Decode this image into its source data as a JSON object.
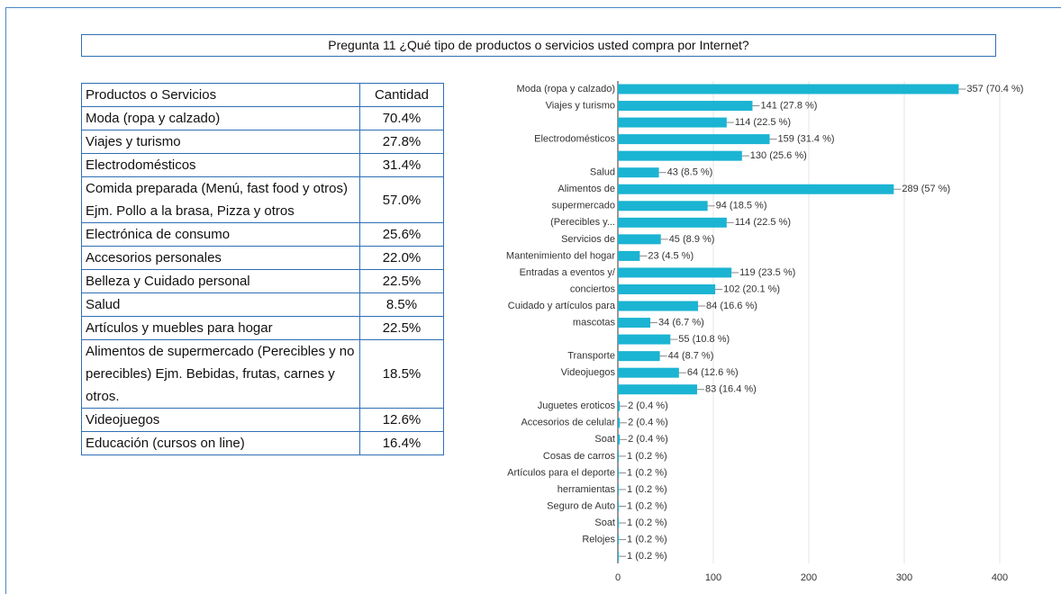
{
  "title": "Pregunta 11 ¿Qué tipo de productos o servicios usted compra por Internet?",
  "table": {
    "header": [
      "Productos o Servicios",
      "Cantidad"
    ],
    "rows": [
      [
        "Moda (ropa y calzado)",
        "70.4%"
      ],
      [
        "Viajes y turismo",
        "27.8%"
      ],
      [
        "Electrodomésticos",
        "31.4%"
      ],
      [
        "Comida preparada (Menú, fast food y otros) Ejm. Pollo a la brasa, Pizza y otros",
        "57.0%"
      ],
      [
        "Electrónica de consumo",
        "25.6%"
      ],
      [
        "Accesorios personales",
        "22.0%"
      ],
      [
        "Belleza y Cuidado personal",
        "22.5%"
      ],
      [
        "Salud",
        "8.5%"
      ],
      [
        "Artículos y muebles para hogar",
        "22.5%"
      ],
      [
        "Alimentos de supermercado (Perecibles y no perecibles) Ejm. Bebidas, frutas, carnes y otros.",
        "18.5%"
      ],
      [
        "Videojuegos",
        "12.6%"
      ],
      [
        "Educación (cursos on line)",
        "16.4%"
      ]
    ]
  },
  "chart_data": {
    "type": "bar",
    "orientation": "horizontal",
    "categories": [
      "Moda (ropa y calzado)",
      "Viajes y turismo",
      null,
      "Electrodomésticos",
      null,
      "Salud",
      "Alimentos de",
      "supermercado",
      "(Perecibles y...",
      "Servicios de",
      "Mantenimiento del hogar",
      "Entradas a eventos y/",
      "conciertos",
      "Cuidado y artículos para",
      "mascotas",
      null,
      "Transporte",
      "Videojuegos",
      null,
      "Juguetes eroticos",
      "Accesorios de celular",
      "Soat",
      "Cosas de carros",
      "Artículos para el deporte",
      "herramientas",
      "Seguro de Auto",
      "Soat",
      "Relojes",
      null
    ],
    "values": [
      357,
      141,
      114,
      159,
      130,
      43,
      289,
      94,
      114,
      45,
      23,
      119,
      102,
      84,
      34,
      55,
      44,
      64,
      83,
      2,
      2,
      2,
      1,
      1,
      1,
      1,
      1,
      1,
      1
    ],
    "value_labels": [
      "357 (70.4 %)",
      "141 (27.8 %)",
      "114 (22.5 %)",
      "159 (31.4 %)",
      "130 (25.6 %)",
      "43 (8.5 %)",
      "289 (57 %)",
      "94 (18.5 %)",
      "114 (22.5 %)",
      "45 (8.9 %)",
      "23 (4.5 %)",
      "119 (23.5 %)",
      "102 (20.1 %)",
      "84 (16.6 %)",
      "34 (6.7 %)",
      "55 (10.8 %)",
      "44 (8.7 %)",
      "64 (12.6 %)",
      "83 (16.4 %)",
      "2 (0.4 %)",
      "2 (0.4 %)",
      "2 (0.4 %)",
      "1 (0.2 %)",
      "1 (0.2 %)",
      "1 (0.2 %)",
      "1 (0.2 %)",
      "1 (0.2 %)",
      "1 (0.2 %)",
      "1 (0.2 %)"
    ],
    "color": "#1bb4d2",
    "xlim": [
      0,
      400
    ],
    "xticks": [
      0,
      100,
      200,
      300,
      400
    ],
    "grid": true
  }
}
